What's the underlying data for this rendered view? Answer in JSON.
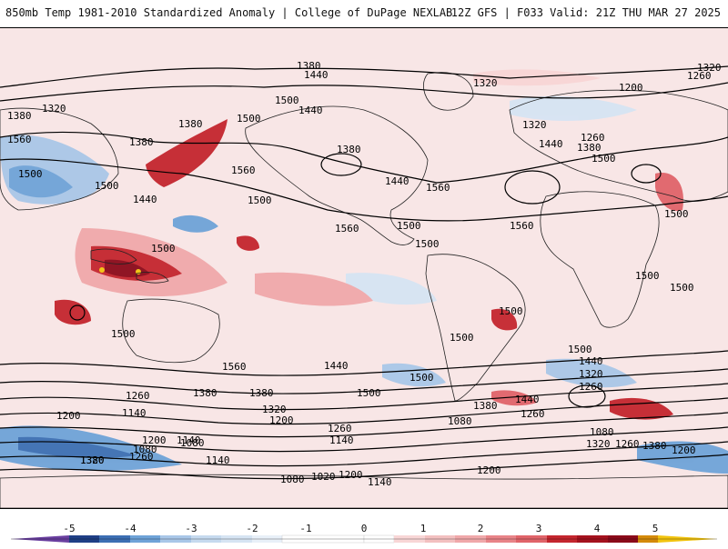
{
  "header": {
    "title": "850mb Temp 1981-2010 Standardized Anomaly | College of DuPage NEXLAB",
    "run_info": "12Z GFS | F033 Valid: 21Z THU MAR 27 2025"
  },
  "colors": {
    "strong_pos": "#8b0a1a",
    "pos4": "#c4262e",
    "pos3": "#e0646a",
    "pos2": "#f0a8aa",
    "pos1": "#f8d6d6",
    "neutral": "#ffffff",
    "neg1": "#d6e4f3",
    "neg2": "#a9c7e8",
    "neg3": "#6fa3d8",
    "neg4": "#3c6fb3",
    "neg5": "#1f3f86",
    "extreme_pos": "#f2c40f",
    "extreme_neg": "#6a3fa0"
  },
  "map": {
    "contour_labels": [
      {
        "id": "c1",
        "text": "1380"
      },
      {
        "id": "c2",
        "text": "1440"
      },
      {
        "id": "c3",
        "text": "1320"
      },
      {
        "id": "c4",
        "text": "1320"
      },
      {
        "id": "c5",
        "text": "1260"
      },
      {
        "id": "c6",
        "text": "1200"
      },
      {
        "id": "c7",
        "text": "1380"
      },
      {
        "id": "c8",
        "text": "1320"
      },
      {
        "id": "c9",
        "text": "1500"
      },
      {
        "id": "c10",
        "text": "1440"
      },
      {
        "id": "c11",
        "text": "1380"
      },
      {
        "id": "c12",
        "text": "1560"
      },
      {
        "id": "c13",
        "text": "1500"
      },
      {
        "id": "c14",
        "text": "1500"
      },
      {
        "id": "c15",
        "text": "1440"
      },
      {
        "id": "c16",
        "text": "1380"
      },
      {
        "id": "c17",
        "text": "1560"
      },
      {
        "id": "c18",
        "text": "1500"
      },
      {
        "id": "c19",
        "text": "1500"
      },
      {
        "id": "c20",
        "text": "1320"
      },
      {
        "id": "c21",
        "text": "1260"
      },
      {
        "id": "c22",
        "text": "1380"
      },
      {
        "id": "c23",
        "text": "1440"
      },
      {
        "id": "c24",
        "text": "1380"
      },
      {
        "id": "c25",
        "text": "1500"
      },
      {
        "id": "c26",
        "text": "1440"
      },
      {
        "id": "c27",
        "text": "1560"
      },
      {
        "id": "c28",
        "text": "1560"
      },
      {
        "id": "c29",
        "text": "1500"
      },
      {
        "id": "c30",
        "text": "1500"
      },
      {
        "id": "c31",
        "text": "1500"
      },
      {
        "id": "c32",
        "text": "1500"
      },
      {
        "id": "c33",
        "text": "1560"
      },
      {
        "id": "c34",
        "text": "1500"
      },
      {
        "id": "c35",
        "text": "1500"
      },
      {
        "id": "c36",
        "text": "1500"
      },
      {
        "id": "c37",
        "text": "1500"
      },
      {
        "id": "c38",
        "text": "1500"
      },
      {
        "id": "c39",
        "text": "1500"
      },
      {
        "id": "c40",
        "text": "1560"
      },
      {
        "id": "c41",
        "text": "1440"
      },
      {
        "id": "c42",
        "text": "1500"
      },
      {
        "id": "c43",
        "text": "1500"
      },
      {
        "id": "c44",
        "text": "1440"
      },
      {
        "id": "c45",
        "text": "1380"
      },
      {
        "id": "c46",
        "text": "1320"
      },
      {
        "id": "c47",
        "text": "1260"
      },
      {
        "id": "c48",
        "text": "1260"
      },
      {
        "id": "c49",
        "text": "1380"
      },
      {
        "id": "c50",
        "text": "1440"
      },
      {
        "id": "c51",
        "text": "1380"
      },
      {
        "id": "c52",
        "text": "1320"
      },
      {
        "id": "c53",
        "text": "1260"
      },
      {
        "id": "c54",
        "text": "1200"
      },
      {
        "id": "c55",
        "text": "1140"
      },
      {
        "id": "c56",
        "text": "1260"
      },
      {
        "id": "c57",
        "text": "1200"
      },
      {
        "id": "c58",
        "text": "1080"
      },
      {
        "id": "c59",
        "text": "1140"
      },
      {
        "id": "c60",
        "text": "1080"
      },
      {
        "id": "c61",
        "text": "1200"
      },
      {
        "id": "c62",
        "text": "1320"
      },
      {
        "id": "c63",
        "text": "1260"
      },
      {
        "id": "c64",
        "text": "1380"
      },
      {
        "id": "c65",
        "text": "1200"
      },
      {
        "id": "c66",
        "text": "1140"
      },
      {
        "id": "c67",
        "text": "1080"
      },
      {
        "id": "c68",
        "text": "1140"
      },
      {
        "id": "c69",
        "text": "1080"
      },
      {
        "id": "c70",
        "text": "1020"
      },
      {
        "id": "c71",
        "text": "1200"
      },
      {
        "id": "c72",
        "text": "1140"
      },
      {
        "id": "c73",
        "text": "1080"
      },
      {
        "id": "c74",
        "text": "1200"
      },
      {
        "id": "c75",
        "text": "1260"
      },
      {
        "id": "c76",
        "text": "1320"
      },
      {
        "id": "c77",
        "text": "1380"
      }
    ]
  },
  "legend": {
    "ticks": [
      "-5",
      "-4",
      "-3",
      "-2",
      "-1",
      "0",
      "1",
      "2",
      "3",
      "4",
      "5"
    ]
  }
}
